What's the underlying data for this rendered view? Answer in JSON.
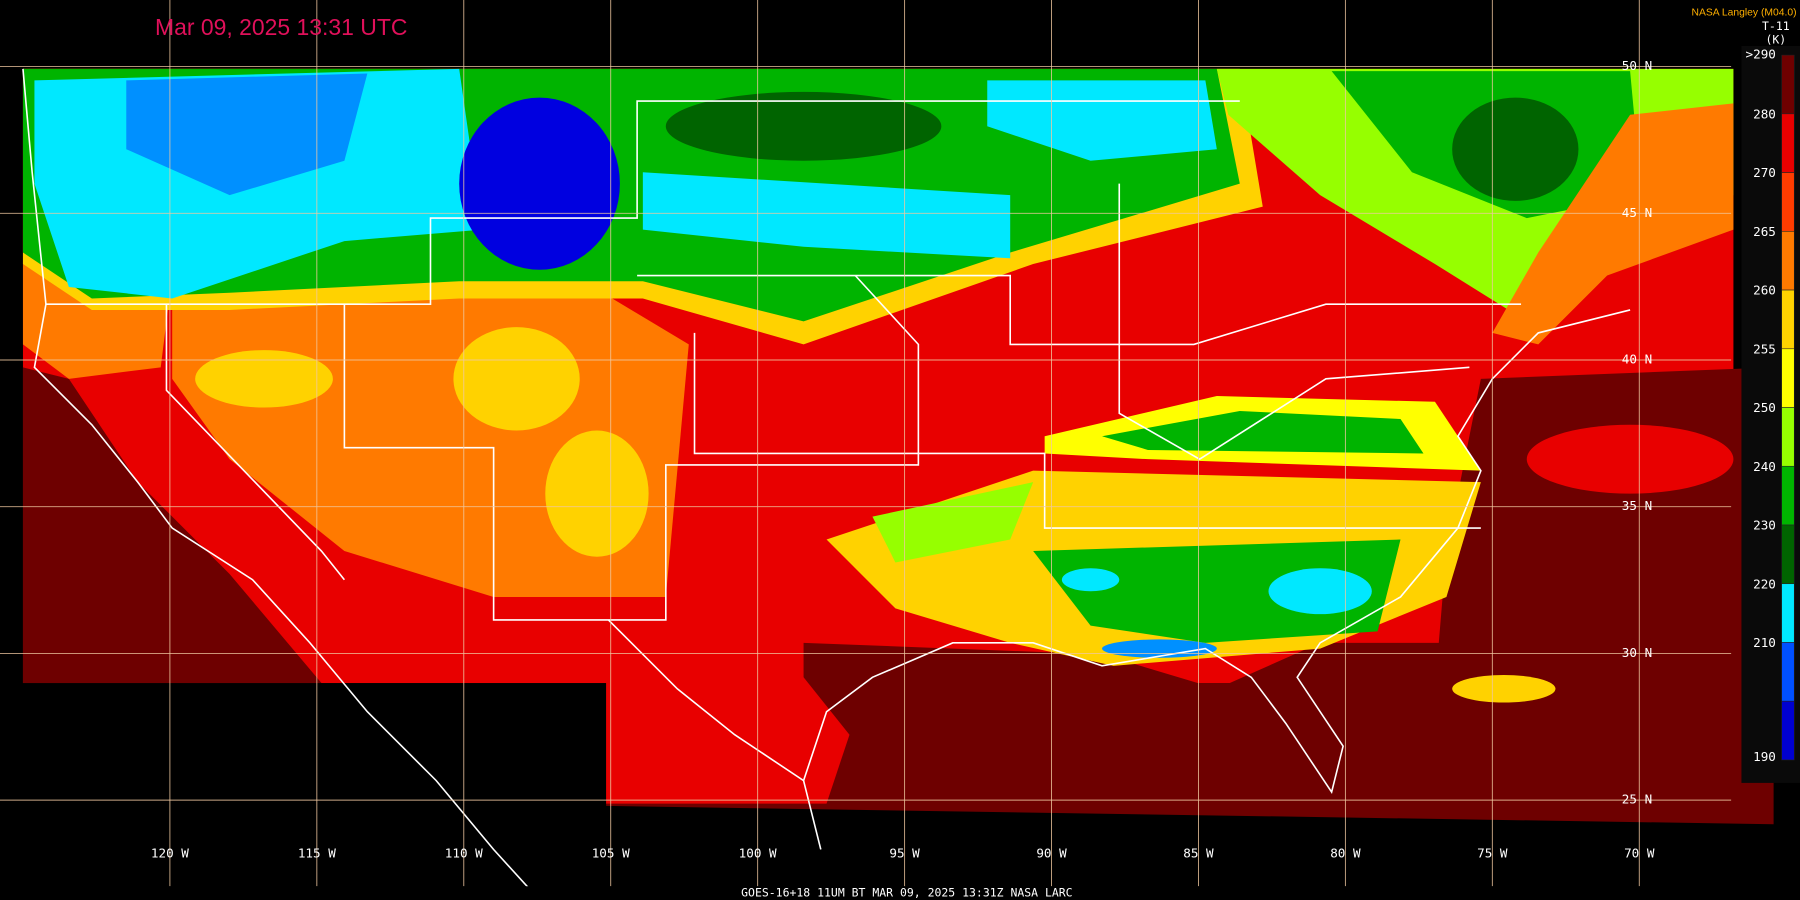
{
  "header": {
    "title": "Mar 09, 2025 13:31 UTC",
    "credit": "NASA Langley (M04.0)"
  },
  "legend": {
    "title": "T-11",
    "unit": "(K)",
    "items": [
      {
        "label": ">290",
        "color": "#6e0000"
      },
      {
        "label": "280",
        "color": "#e80000"
      },
      {
        "label": "270",
        "color": "#ff3c00"
      },
      {
        "label": "265",
        "color": "#ff7a00"
      },
      {
        "label": "260",
        "color": "#ffd200"
      },
      {
        "label": "255",
        "color": "#ffff00"
      },
      {
        "label": "250",
        "color": "#96ff00"
      },
      {
        "label": "240",
        "color": "#00b400"
      },
      {
        "label": "230",
        "color": "#006400"
      },
      {
        "label": "220",
        "color": "#00e8ff"
      },
      {
        "label": "210",
        "color": "#0050ff"
      },
      {
        "label": "190",
        "color": "#0000d0"
      }
    ]
  },
  "grid": {
    "latitudes": [
      "50 N",
      "45 N",
      "40 N",
      "35 N",
      "30 N",
      "25 N"
    ],
    "longitudes": [
      "120 W",
      "115 W",
      "110 W",
      "105 W",
      "100 W",
      "95 W",
      "90 W",
      "85 W",
      "80 W",
      "75 W",
      "70 W"
    ]
  },
  "footer": {
    "caption": "GOES-16+18  11UM BT  MAR 09, 2025 13:31Z  NASA LARC"
  }
}
